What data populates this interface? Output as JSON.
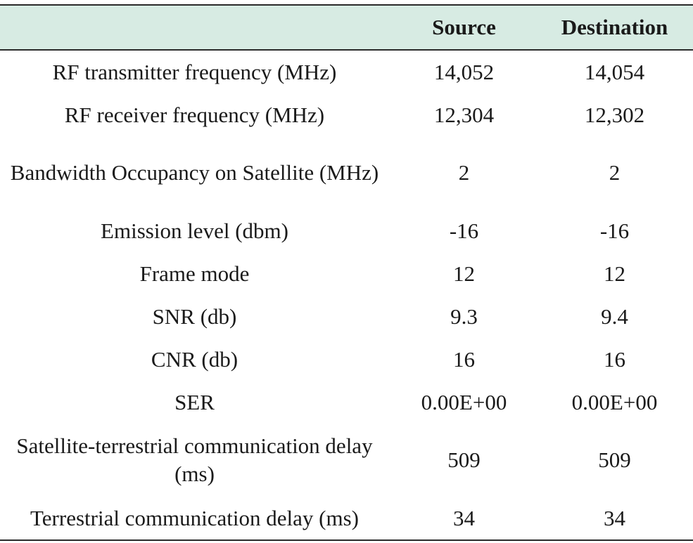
{
  "table": {
    "headers": [
      "",
      "Source",
      "Destination"
    ],
    "rows": [
      {
        "label": "RF transmitter frequency (MHz)",
        "source": "14,052",
        "destination": "14,054"
      },
      {
        "label": "RF receiver frequency (MHz)",
        "source": "12,304",
        "destination": "12,302"
      },
      {
        "label": "Bandwidth Occupancy on Satellite (MHz)",
        "source": "2",
        "destination": "2"
      },
      {
        "label": "Emission level (dbm)",
        "source": "-16",
        "destination": "-16"
      },
      {
        "label": "Frame mode",
        "source": "12",
        "destination": "12"
      },
      {
        "label": "SNR (db)",
        "source": "9.3",
        "destination": "9.4"
      },
      {
        "label": "CNR (db)",
        "source": "16",
        "destination": "16"
      },
      {
        "label": "SER",
        "source": "0.00E+00",
        "destination": "0.00E+00"
      },
      {
        "label": "Satellite-terrestrial communication delay (ms)",
        "source": "509",
        "destination": "509"
      },
      {
        "label": "Terrestrial communication delay (ms)",
        "source": "34",
        "destination": "34"
      }
    ]
  },
  "colors": {
    "header_background": "#d7ebe3",
    "rule": "#2a2a2a"
  }
}
